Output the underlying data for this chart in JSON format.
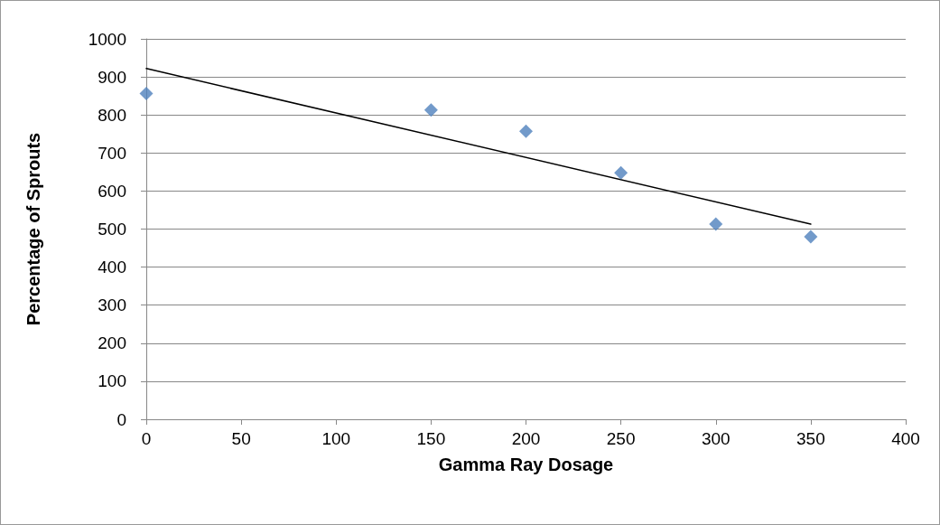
{
  "chart_data": {
    "type": "scatter",
    "xlabel": "Gamma Ray Dosage",
    "ylabel": "Percentage of Sprouts",
    "x": [
      0,
      150,
      200,
      250,
      300,
      350
    ],
    "series": [
      {
        "color": "#4f81bd",
        "marker": "diamond",
        "values": [
          856,
          813,
          757,
          648,
          513,
          480
        ]
      },
      {
        "type": "line",
        "color": "#000000",
        "marker": "none",
        "line_style": "solid",
        "x": [
          0,
          350
        ],
        "values": [
          922,
          513
        ]
      }
    ],
    "xlim": [
      0,
      400
    ],
    "xticks": [
      0,
      50,
      100,
      150,
      200,
      250,
      300,
      350,
      400
    ],
    "ylim": [
      0,
      1000
    ],
    "yticks": [
      0,
      100,
      200,
      300,
      400,
      500,
      600,
      700,
      800,
      900,
      1000
    ],
    "grid": "y"
  }
}
